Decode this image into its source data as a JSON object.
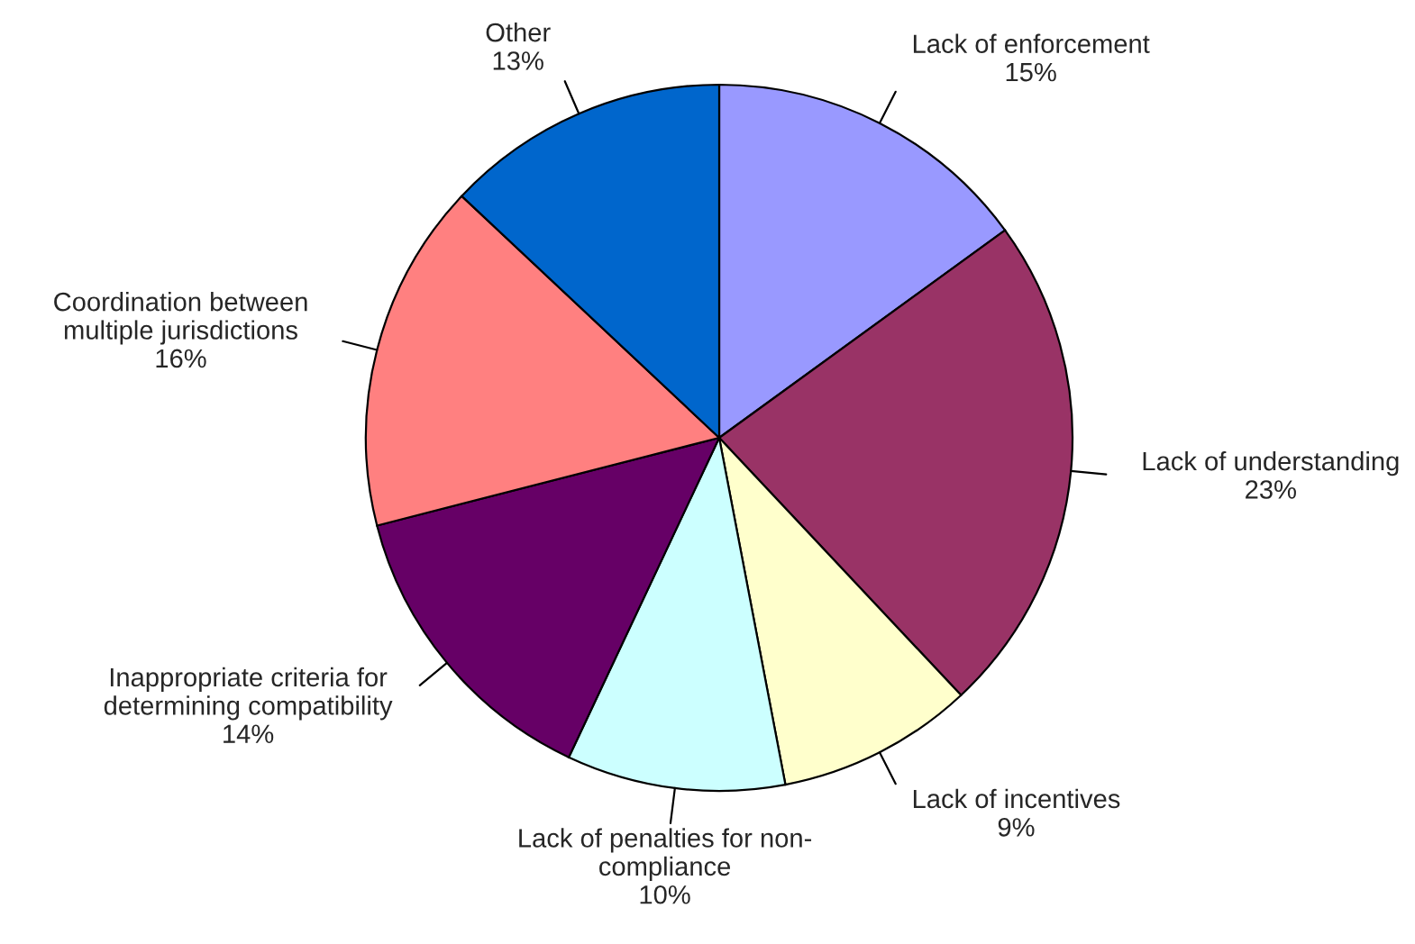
{
  "chart_data": {
    "type": "pie",
    "categories": [
      "Lack of enforcement",
      "Lack of understanding",
      "Lack of incentives",
      "Lack of penalties for non-\ncompliance",
      "Inappropriate criteria for\ndetermining compatibility",
      "Coordination between\nmultiple jurisdictions",
      "Other"
    ],
    "values": [
      15,
      23,
      9,
      10,
      14,
      16,
      13
    ],
    "value_labels": [
      "15%",
      "23%",
      "9%",
      "10%",
      "14%",
      "16%",
      "13%"
    ],
    "colors": [
      "#9999ff",
      "#993366",
      "#ffffcc",
      "#ccffff",
      "#660066",
      "#ff8080",
      "#0066cc"
    ]
  }
}
